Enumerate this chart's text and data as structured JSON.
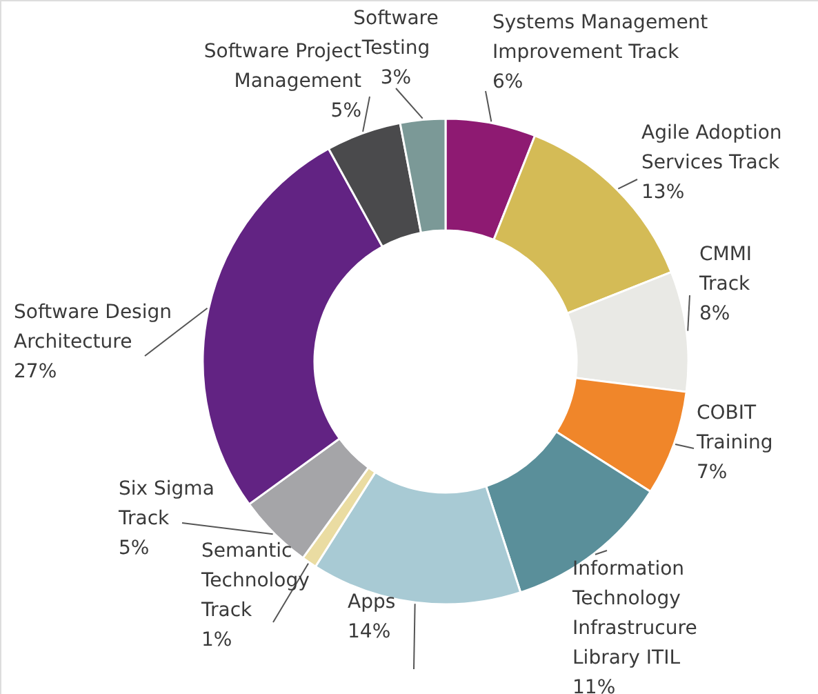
{
  "chart_data": {
    "type": "donut",
    "categories": [
      "Systems Management\nImprovement Track",
      "Agile Adoption\nServices Track",
      "CMMI\nTrack",
      "COBIT\nTraining",
      "Information\nTechnology\nInfrastrucure\nLibrary ITIL",
      "Apps",
      "Semantic\nTechnology\nTrack",
      "Six Sigma\nTrack",
      "Software Design\nArchitecture",
      "Software Project\nManagement",
      "Software\nTesting"
    ],
    "values": [
      6,
      13,
      8,
      7,
      11,
      14,
      1,
      5,
      27,
      5,
      3
    ],
    "value_labels": [
      "6%",
      "13%",
      "8%",
      "7%",
      "11%",
      "14%",
      "1%",
      "5%",
      "27%",
      "5%",
      "3%"
    ],
    "colors": [
      "#8e1a72",
      "#d4bb56",
      "#e9e9e5",
      "#f0862a",
      "#5a8f9a",
      "#a8cad4",
      "#eadca2",
      "#a5a5a8",
      "#622383",
      "#4a4a4c",
      "#7b9997"
    ]
  }
}
